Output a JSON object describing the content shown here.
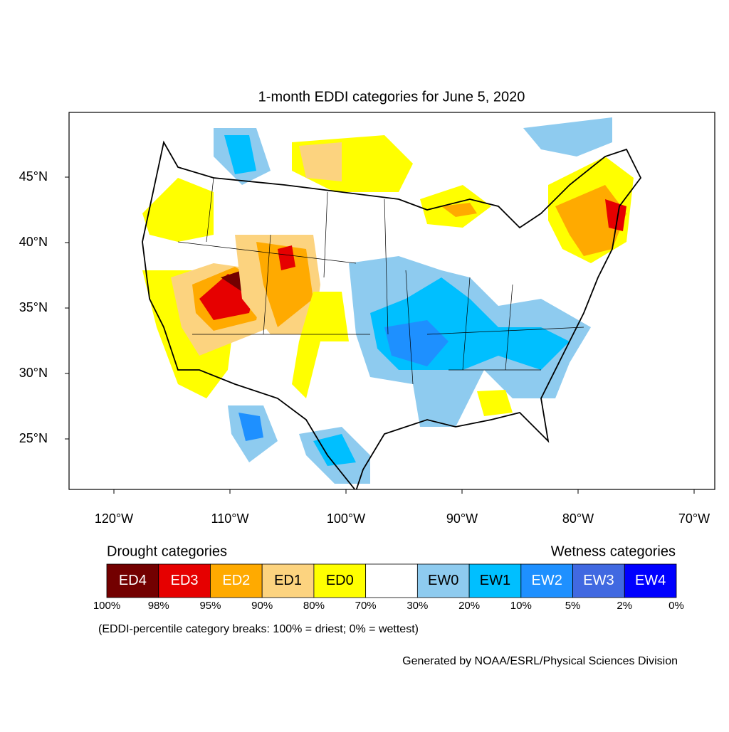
{
  "title": "1-month EDDI categories for June 5, 2020",
  "lat_ticks": [
    {
      "value": 45,
      "label": "45°N"
    },
    {
      "value": 40,
      "label": "40°N"
    },
    {
      "value": 35,
      "label": "35°N"
    },
    {
      "value": 30,
      "label": "30°N"
    },
    {
      "value": 25,
      "label": "25°N"
    }
  ],
  "lon_ticks": [
    {
      "value": -120,
      "label": "120°W"
    },
    {
      "value": -110,
      "label": "110°W"
    },
    {
      "value": -100,
      "label": "100°W"
    },
    {
      "value": -90,
      "label": "90°W"
    },
    {
      "value": -80,
      "label": "80°W"
    },
    {
      "value": -70,
      "label": "70°W"
    }
  ],
  "legend": {
    "drought_title": "Drought categories",
    "wetness_title": "Wetness categories",
    "drought": [
      {
        "label": "ED4",
        "color": "#730000",
        "text_color": "#ffffff"
      },
      {
        "label": "ED3",
        "color": "#e60000",
        "text_color": "#ffffff"
      },
      {
        "label": "ED2",
        "color": "#ffaa00",
        "text_color": "#ffffff"
      },
      {
        "label": "ED1",
        "color": "#fcd37f",
        "text_color": "#000000"
      },
      {
        "label": "ED0",
        "color": "#ffff00",
        "text_color": "#000000"
      }
    ],
    "wetness": [
      {
        "label": "EW0",
        "color": "#8ecbef",
        "text_color": "#000000"
      },
      {
        "label": "EW1",
        "color": "#00bfff",
        "text_color": "#000000"
      },
      {
        "label": "EW2",
        "color": "#1e90ff",
        "text_color": "#ffffff"
      },
      {
        "label": "EW3",
        "color": "#4169e1",
        "text_color": "#ffffff"
      },
      {
        "label": "EW4",
        "color": "#0000ff",
        "text_color": "#ffffff"
      }
    ],
    "breaks": [
      "100%",
      "98%",
      "95%",
      "90%",
      "80%",
      "70%",
      "30%",
      "20%",
      "10%",
      "5%",
      "2%",
      "0%"
    ]
  },
  "note": "(EDDI-percentile category breaks: 100% = driest; 0% = wettest)",
  "credit": "Generated by NOAA/ESRL/Physical Sciences Division"
}
